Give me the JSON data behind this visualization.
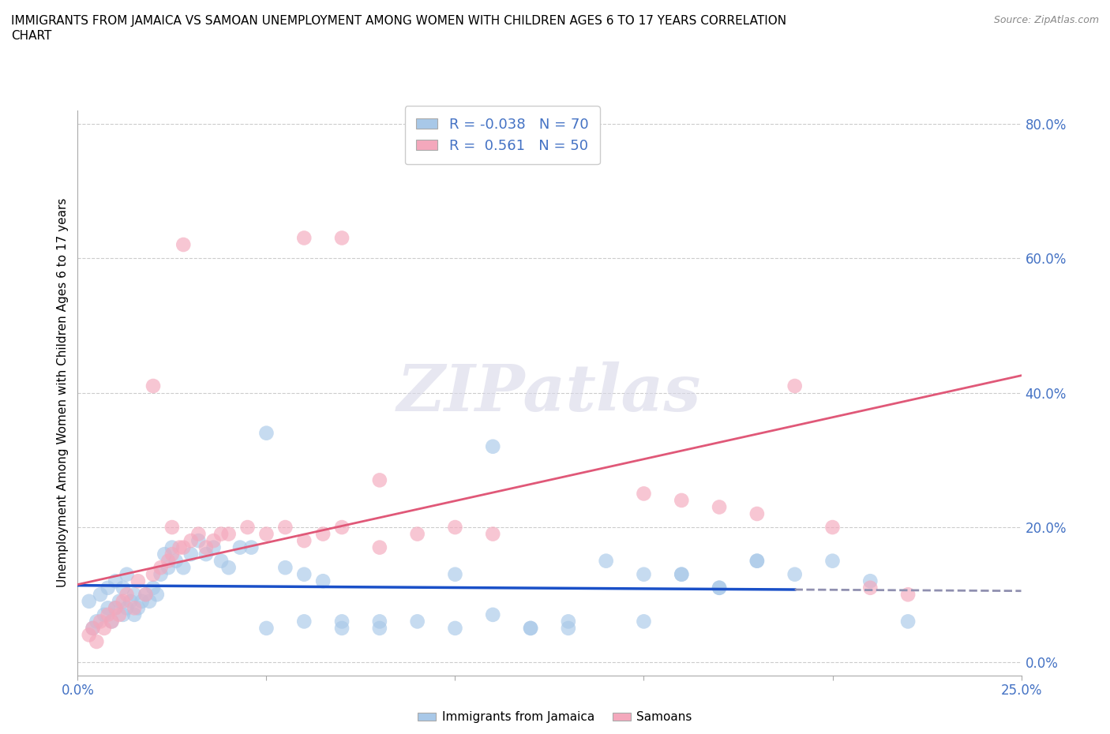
{
  "title": "IMMIGRANTS FROM JAMAICA VS SAMOAN UNEMPLOYMENT AMONG WOMEN WITH CHILDREN AGES 6 TO 17 YEARS CORRELATION\nCHART",
  "source": "Source: ZipAtlas.com",
  "ylabel": "Unemployment Among Women with Children Ages 6 to 17 years",
  "xlim": [
    0.0,
    0.25
  ],
  "ylim": [
    -0.02,
    0.82
  ],
  "yticks": [
    0.0,
    0.2,
    0.4,
    0.6,
    0.8
  ],
  "ytick_labels": [
    "0.0%",
    "20.0%",
    "40.0%",
    "60.0%",
    "80.0%"
  ],
  "xticks": [
    0.0,
    0.05,
    0.1,
    0.15,
    0.2,
    0.25
  ],
  "xtick_labels": [
    "0.0%",
    "",
    "",
    "",
    "",
    "25.0%"
  ],
  "jamaica_color": "#a8c8e8",
  "samoa_color": "#f4a8bc",
  "jamaica_line_color": "#1a50c8",
  "jamaica_line_dash_color": "#9090b0",
  "samoa_line_color": "#e05878",
  "jamaica_R": -0.038,
  "jamaica_N": 70,
  "samoa_R": 0.561,
  "samoa_N": 50,
  "watermark": "ZIPatlas",
  "legend_labels": [
    "Immigrants from Jamaica",
    "Samoans"
  ],
  "jamaica_scatter_x": [
    0.003,
    0.004,
    0.005,
    0.006,
    0.007,
    0.008,
    0.008,
    0.009,
    0.01,
    0.01,
    0.011,
    0.012,
    0.012,
    0.013,
    0.013,
    0.014,
    0.015,
    0.015,
    0.016,
    0.017,
    0.018,
    0.019,
    0.02,
    0.021,
    0.022,
    0.023,
    0.024,
    0.025,
    0.026,
    0.028,
    0.03,
    0.032,
    0.034,
    0.036,
    0.038,
    0.04,
    0.043,
    0.046,
    0.05,
    0.055,
    0.06,
    0.065,
    0.07,
    0.08,
    0.09,
    0.1,
    0.11,
    0.12,
    0.13,
    0.14,
    0.15,
    0.16,
    0.17,
    0.18,
    0.19,
    0.2,
    0.21,
    0.22,
    0.1,
    0.11,
    0.15,
    0.16,
    0.17,
    0.18,
    0.05,
    0.06,
    0.07,
    0.08,
    0.12,
    0.13
  ],
  "jamaica_scatter_y": [
    0.09,
    0.05,
    0.06,
    0.1,
    0.07,
    0.08,
    0.11,
    0.06,
    0.08,
    0.12,
    0.09,
    0.07,
    0.11,
    0.08,
    0.13,
    0.09,
    0.07,
    0.1,
    0.08,
    0.09,
    0.1,
    0.09,
    0.11,
    0.1,
    0.13,
    0.16,
    0.14,
    0.17,
    0.15,
    0.14,
    0.16,
    0.18,
    0.16,
    0.17,
    0.15,
    0.14,
    0.17,
    0.17,
    0.34,
    0.14,
    0.13,
    0.12,
    0.06,
    0.05,
    0.06,
    0.13,
    0.07,
    0.05,
    0.05,
    0.15,
    0.13,
    0.13,
    0.11,
    0.15,
    0.13,
    0.15,
    0.12,
    0.06,
    0.05,
    0.32,
    0.06,
    0.13,
    0.11,
    0.15,
    0.05,
    0.06,
    0.05,
    0.06,
    0.05,
    0.06
  ],
  "samoa_scatter_x": [
    0.003,
    0.004,
    0.005,
    0.006,
    0.007,
    0.008,
    0.009,
    0.01,
    0.011,
    0.012,
    0.013,
    0.015,
    0.016,
    0.018,
    0.02,
    0.022,
    0.024,
    0.025,
    0.027,
    0.028,
    0.03,
    0.032,
    0.034,
    0.036,
    0.038,
    0.04,
    0.045,
    0.05,
    0.055,
    0.06,
    0.065,
    0.07,
    0.08,
    0.09,
    0.1,
    0.11,
    0.15,
    0.16,
    0.17,
    0.18,
    0.19,
    0.2,
    0.21,
    0.22,
    0.028,
    0.06,
    0.07,
    0.08,
    0.02,
    0.025
  ],
  "samoa_scatter_y": [
    0.04,
    0.05,
    0.03,
    0.06,
    0.05,
    0.07,
    0.06,
    0.08,
    0.07,
    0.09,
    0.1,
    0.08,
    0.12,
    0.1,
    0.13,
    0.14,
    0.15,
    0.16,
    0.17,
    0.17,
    0.18,
    0.19,
    0.17,
    0.18,
    0.19,
    0.19,
    0.2,
    0.19,
    0.2,
    0.18,
    0.19,
    0.2,
    0.17,
    0.19,
    0.2,
    0.19,
    0.25,
    0.24,
    0.23,
    0.22,
    0.41,
    0.2,
    0.11,
    0.1,
    0.62,
    0.63,
    0.63,
    0.27,
    0.41,
    0.2
  ]
}
